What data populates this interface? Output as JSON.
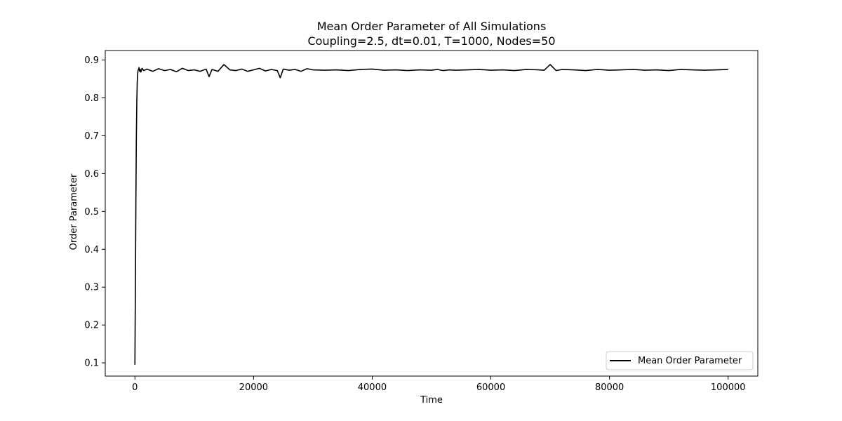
{
  "chart_data": {
    "type": "line",
    "title": "Mean Order Parameter of All Simulations",
    "subtitle": "Coupling=2.5, dt=0.01, T=1000, Nodes=50",
    "xlabel": "Time",
    "ylabel": "Order Parameter",
    "xlim": [
      -5000,
      105000
    ],
    "ylim": [
      0.065,
      0.925
    ],
    "xticks": [
      0,
      20000,
      40000,
      60000,
      80000,
      100000
    ],
    "yticks": [
      0.1,
      0.2,
      0.3,
      0.4,
      0.5,
      0.6,
      0.7,
      0.8,
      0.9
    ],
    "grid": false,
    "legend_position": "bottom-right",
    "series": [
      {
        "name": "Mean Order Parameter",
        "color": "#000000",
        "x": [
          0,
          80,
          160,
          240,
          320,
          400,
          500,
          600,
          700,
          800,
          900,
          1000,
          1200,
          1500,
          2000,
          3000,
          4000,
          5000,
          6000,
          7000,
          8000,
          9000,
          10000,
          11000,
          12000,
          12500,
          13000,
          14000,
          15000,
          16000,
          17000,
          18000,
          19000,
          20000,
          21000,
          22000,
          23000,
          24000,
          24500,
          25000,
          26000,
          27000,
          28000,
          29000,
          30000,
          32000,
          34000,
          36000,
          38000,
          40000,
          42000,
          44000,
          46000,
          48000,
          50000,
          51000,
          52000,
          53000,
          54000,
          56000,
          58000,
          60000,
          62000,
          64000,
          66000,
          68000,
          69000,
          70000,
          71000,
          72000,
          74000,
          76000,
          78000,
          80000,
          82000,
          84000,
          86000,
          88000,
          90000,
          92000,
          94000,
          96000,
          98000,
          100000
        ],
        "values": [
          0.095,
          0.3,
          0.52,
          0.69,
          0.79,
          0.845,
          0.87,
          0.875,
          0.88,
          0.87,
          0.875,
          0.868,
          0.878,
          0.872,
          0.876,
          0.87,
          0.877,
          0.872,
          0.875,
          0.869,
          0.878,
          0.872,
          0.874,
          0.87,
          0.876,
          0.856,
          0.875,
          0.87,
          0.888,
          0.874,
          0.872,
          0.876,
          0.87,
          0.874,
          0.878,
          0.871,
          0.875,
          0.872,
          0.853,
          0.876,
          0.873,
          0.875,
          0.87,
          0.877,
          0.874,
          0.873,
          0.874,
          0.872,
          0.875,
          0.876,
          0.873,
          0.874,
          0.872,
          0.874,
          0.873,
          0.875,
          0.872,
          0.874,
          0.873,
          0.874,
          0.875,
          0.873,
          0.874,
          0.872,
          0.875,
          0.874,
          0.873,
          0.888,
          0.872,
          0.875,
          0.874,
          0.872,
          0.875,
          0.873,
          0.874,
          0.875,
          0.873,
          0.874,
          0.872,
          0.875,
          0.874,
          0.873,
          0.874,
          0.875
        ]
      }
    ]
  }
}
